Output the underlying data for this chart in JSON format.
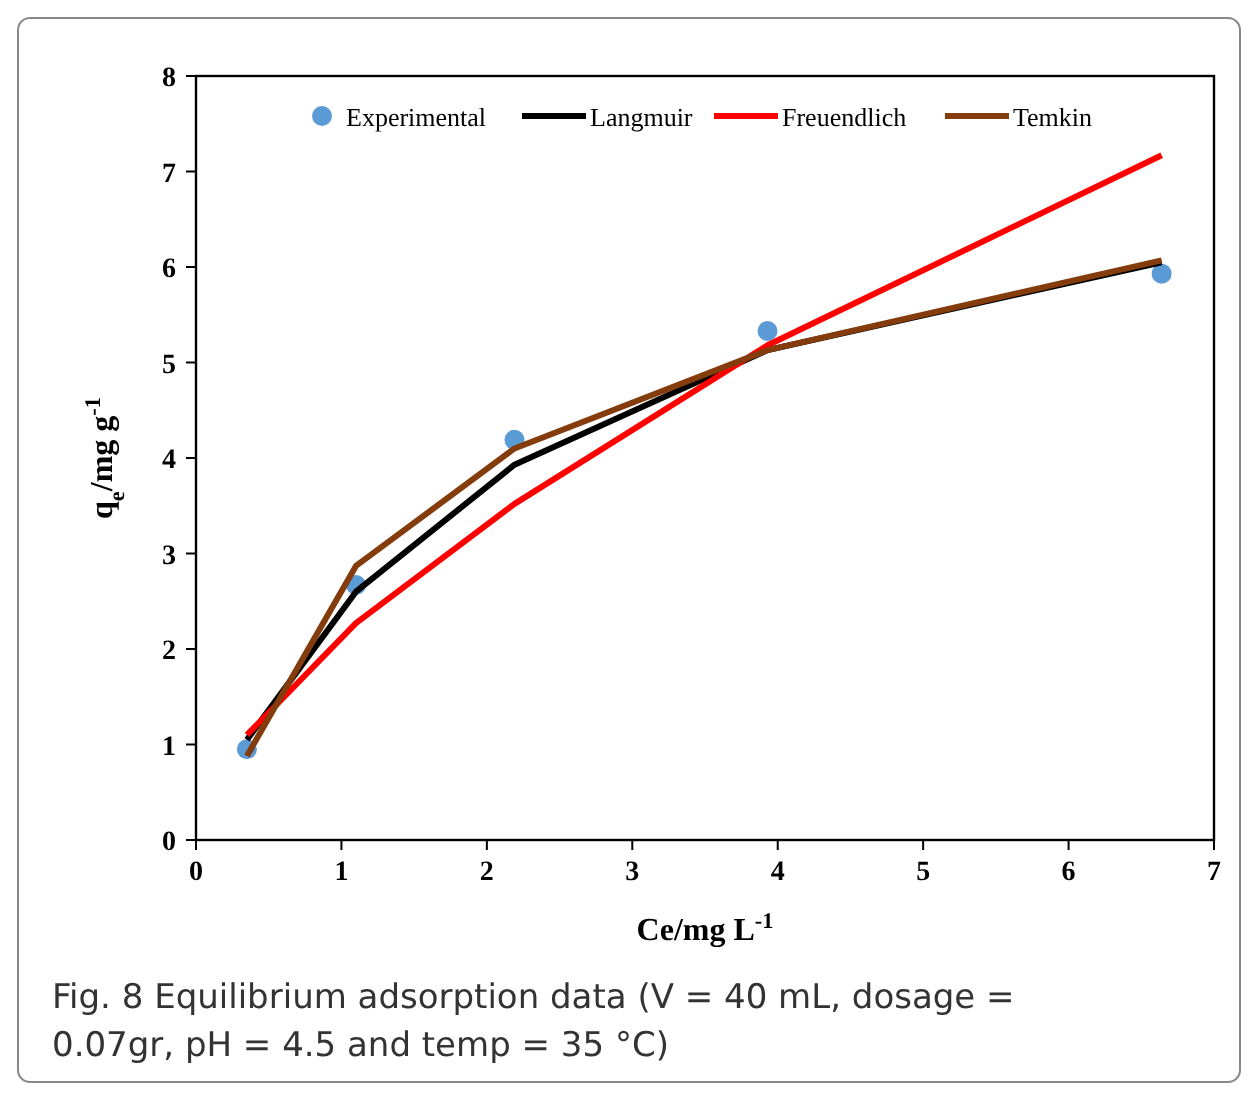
{
  "chart_data": {
    "type": "line",
    "xlabel": "Ce/mg L$^{-1}$",
    "ylabel": "q$_{e}$/mg g$^{-1}$",
    "x": [
      0.35,
      1.1,
      2.19,
      3.93,
      6.64
    ],
    "xlim": [
      0,
      7
    ],
    "xticks": [
      0,
      1,
      2,
      3,
      4,
      5,
      6,
      7
    ],
    "ylim": [
      0,
      8
    ],
    "yticks": [
      0,
      1,
      2,
      3,
      4,
      5,
      6,
      7,
      8
    ],
    "grid": false,
    "legend": "top",
    "series": [
      {
        "name": "Experimental",
        "type": "scatter",
        "marker": "circle",
        "color": "#5b9bd5",
        "values": [
          0.95,
          2.67,
          4.19,
          5.33,
          5.93
        ]
      },
      {
        "name": "Langmuir",
        "color": "#000000",
        "values": [
          1.05,
          2.6,
          3.93,
          5.13,
          6.05
        ]
      },
      {
        "name": "Freuendlich",
        "color": "#ff0000",
        "values": [
          1.1,
          2.27,
          3.52,
          5.18,
          7.17
        ]
      },
      {
        "name": "Temkin",
        "color": "#843c0c",
        "values": [
          0.88,
          2.87,
          4.1,
          5.13,
          6.07
        ]
      }
    ],
    "annotations": [
      "Fig. 8 Equilibrium adsorption data (V = 40 mL, dosage = 0.07gr, pH = 4.5 and temp = 35 °C)"
    ]
  }
}
